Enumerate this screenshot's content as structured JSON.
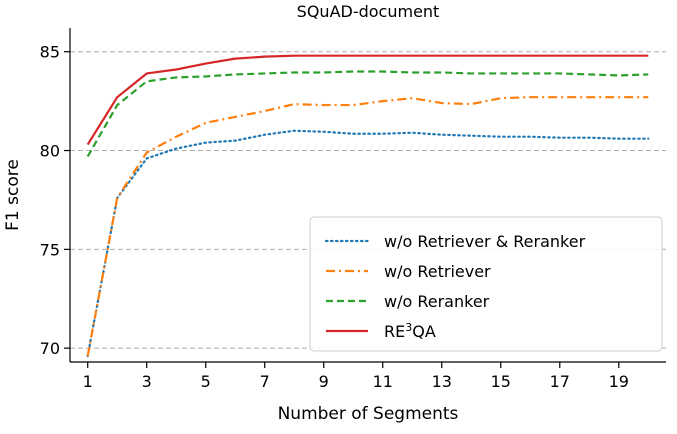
{
  "chart_data": {
    "type": "line",
    "title": "SQuAD-document",
    "xlabel": "Number of Segments",
    "ylabel": "F1 score",
    "xlim": [
      0.4,
      20.6
    ],
    "ylim": [
      69.3,
      86.2
    ],
    "x_ticks": [
      1,
      3,
      5,
      7,
      9,
      11,
      13,
      15,
      17,
      19
    ],
    "y_ticks": [
      70,
      75,
      80,
      85
    ],
    "grid": "horizontal dashed at y ticks",
    "legend_position": "lower-right",
    "x": [
      1,
      2,
      3,
      4,
      5,
      6,
      7,
      8,
      9,
      10,
      11,
      12,
      13,
      14,
      15,
      16,
      17,
      18,
      19,
      20
    ],
    "series": [
      {
        "name": "w/o Retriever & Reranker",
        "color": "#1f77b4",
        "dash": "dotted",
        "values": [
          69.6,
          77.6,
          79.6,
          80.1,
          80.4,
          80.5,
          80.8,
          81.0,
          80.95,
          80.85,
          80.85,
          80.9,
          80.8,
          80.75,
          80.7,
          80.7,
          80.65,
          80.65,
          80.6,
          80.6
        ]
      },
      {
        "name": "w/o Retriever",
        "color": "#ff7f0e",
        "dash": "dashdot",
        "values": [
          69.6,
          77.6,
          79.9,
          80.7,
          81.4,
          81.7,
          82.0,
          82.35,
          82.3,
          82.3,
          82.5,
          82.65,
          82.4,
          82.35,
          82.65,
          82.7,
          82.7,
          82.7,
          82.7,
          82.7
        ]
      },
      {
        "name": "w/o Reranker",
        "color": "#2ca02c",
        "dash": "dashed",
        "values": [
          79.7,
          82.3,
          83.5,
          83.7,
          83.75,
          83.85,
          83.9,
          83.95,
          83.95,
          84.0,
          84.0,
          83.95,
          83.95,
          83.9,
          83.9,
          83.9,
          83.9,
          83.85,
          83.8,
          83.85
        ]
      },
      {
        "name": "RE³QA",
        "color": "#d62728",
        "dash": "solid",
        "values": [
          80.3,
          82.7,
          83.9,
          84.1,
          84.4,
          84.65,
          84.75,
          84.8,
          84.8,
          84.8,
          84.8,
          84.8,
          84.8,
          84.8,
          84.8,
          84.8,
          84.8,
          84.8,
          84.8,
          84.8
        ]
      }
    ]
  }
}
